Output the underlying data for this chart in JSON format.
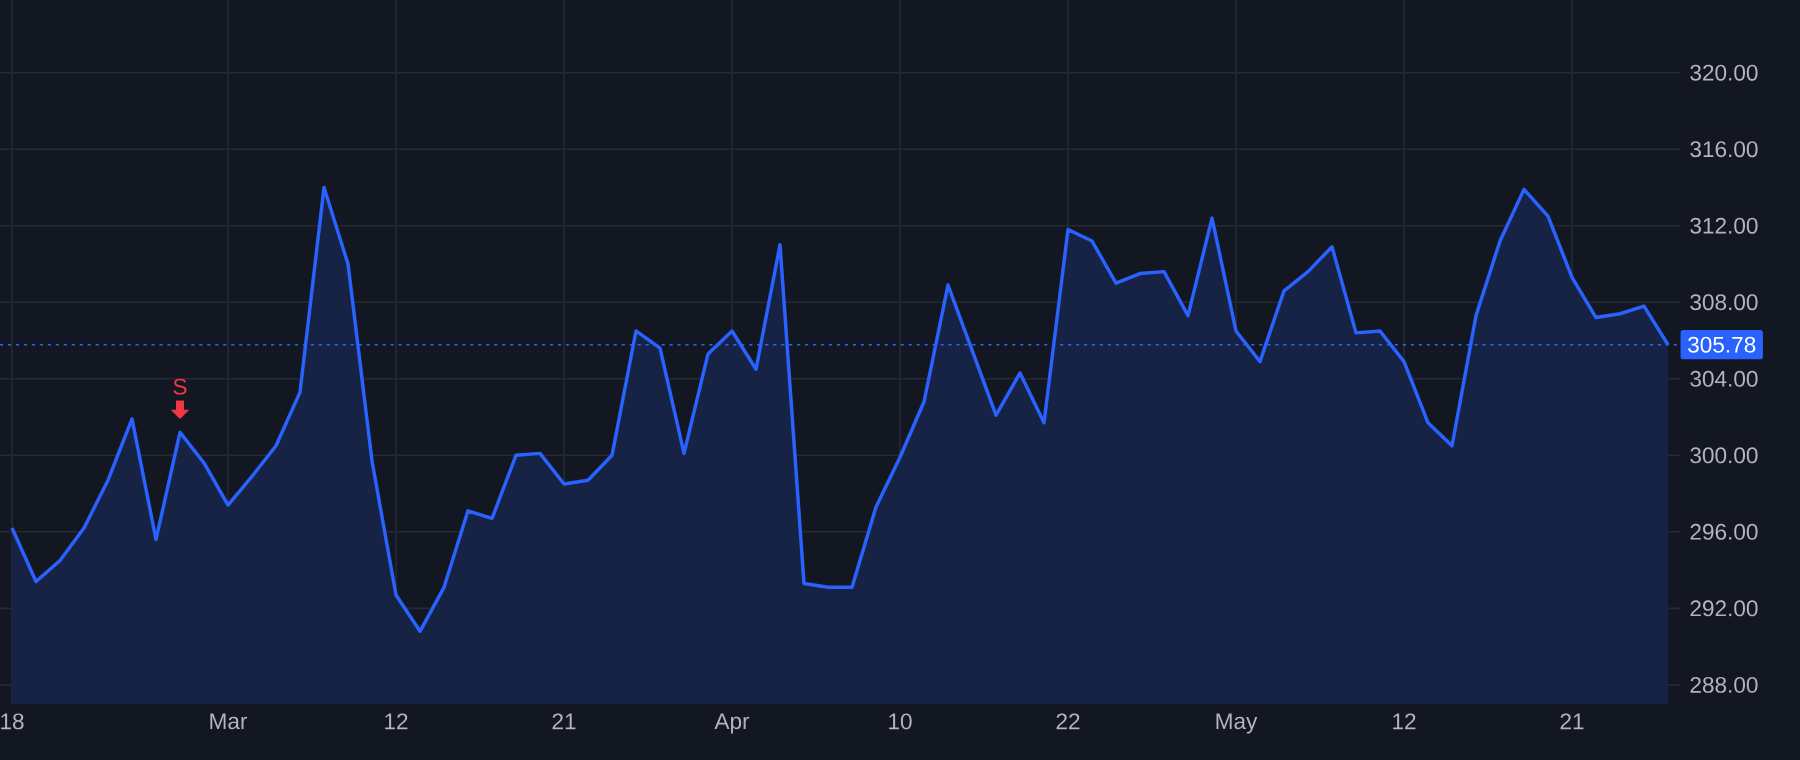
{
  "chart_data": {
    "type": "area",
    "categories": [
      "18",
      null,
      null,
      null,
      null,
      null,
      null,
      null,
      null,
      "Mar",
      null,
      null,
      null,
      null,
      null,
      null,
      "12",
      null,
      null,
      null,
      null,
      null,
      null,
      "21",
      null,
      null,
      null,
      null,
      null,
      null,
      "Apr",
      null,
      null,
      null,
      null,
      null,
      null,
      "10",
      null,
      null,
      null,
      null,
      null,
      null,
      "22",
      null,
      null,
      null,
      null,
      null,
      null,
      "May",
      null,
      null,
      null,
      null,
      null,
      null,
      "12",
      null,
      null,
      null,
      null,
      null,
      null,
      "21",
      null,
      null,
      null,
      null
    ],
    "series": [
      {
        "color": "#2962ff",
        "values": [
          296.2,
          293.4,
          294.5,
          296.2,
          298.7,
          301.9,
          295.6,
          301.2,
          299.6,
          297.4,
          298.9,
          300.5,
          303.3,
          314.0,
          310.0,
          299.7,
          292.7,
          290.8,
          293.1,
          297.1,
          296.7,
          300.0,
          300.1,
          298.5,
          298.7,
          300.0,
          306.5,
          305.6,
          300.1,
          305.3,
          306.5,
          304.5,
          311.0,
          293.3,
          293.1,
          293.1,
          297.3,
          299.9,
          302.8,
          308.9,
          305.5,
          302.1,
          304.3,
          301.7,
          311.8,
          311.2,
          309.0,
          309.5,
          309.6,
          307.3,
          312.4,
          306.5,
          304.9,
          308.6,
          309.6,
          310.9,
          306.4,
          306.5,
          304.9,
          301.7,
          300.5,
          307.3,
          311.2,
          313.9,
          312.5,
          309.3,
          307.2,
          307.4,
          307.8,
          305.78
        ]
      }
    ],
    "ylim": [
      287,
      323.8
    ],
    "yticks": [
      {
        "value": 288,
        "label": "288.00"
      },
      {
        "value": 292,
        "label": "292.00"
      },
      {
        "value": 296,
        "label": "296.00"
      },
      {
        "value": 300,
        "label": "300.00"
      },
      {
        "value": 304,
        "label": "304.00"
      },
      {
        "value": 308,
        "label": "308.00"
      },
      {
        "value": 312,
        "label": "312.00"
      },
      {
        "value": 316,
        "label": "316.00"
      },
      {
        "value": 320,
        "label": "320.00"
      }
    ],
    "grid": true,
    "ref_lines": [
      {
        "axis": "y",
        "value": 305.78,
        "label": "305.78",
        "color": "#2962ff",
        "line_style": "dotted"
      }
    ],
    "annotations": [
      {
        "text": "S",
        "y": 301.2
      }
    ]
  }
}
